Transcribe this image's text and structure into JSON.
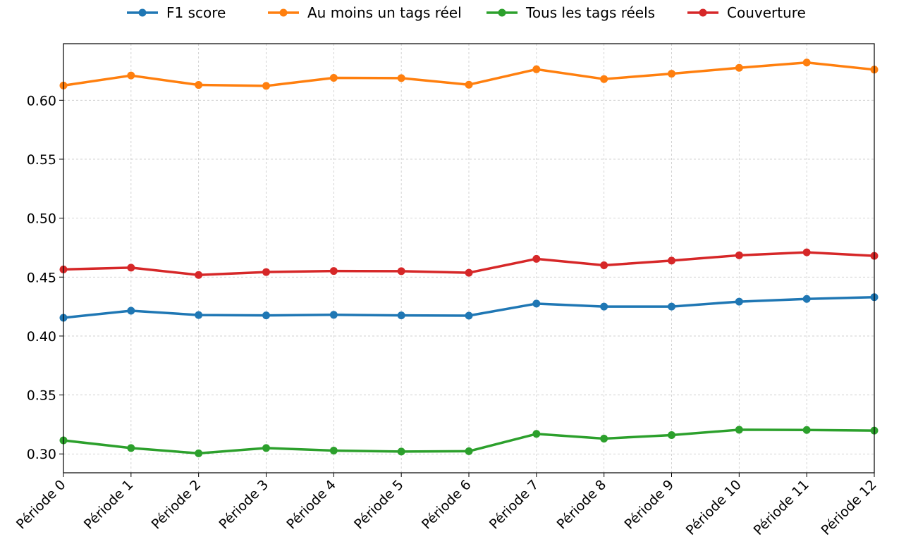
{
  "chart_data": {
    "type": "line",
    "title": "",
    "xlabel": "",
    "ylabel": "",
    "categories": [
      "Période 0",
      "Période 1",
      "Période 2",
      "Période 3",
      "Période 4",
      "Période 5",
      "Période 6",
      "Période 7",
      "Période 8",
      "Période 9",
      "Période 10",
      "Période 11",
      "Période 12"
    ],
    "ylim": [
      0.284,
      0.648
    ],
    "yticks": [
      0.3,
      0.35,
      0.4,
      0.45,
      0.5,
      0.55,
      0.6
    ],
    "ytick_labels": [
      "0.30",
      "0.35",
      "0.40",
      "0.45",
      "0.50",
      "0.55",
      "0.60"
    ],
    "grid": true,
    "legend_position": "top-center",
    "series": [
      {
        "name": "F1 score",
        "color": "#1f77b4",
        "values": [
          0.4155,
          0.4215,
          0.4178,
          0.4175,
          0.418,
          0.4175,
          0.4173,
          0.4275,
          0.425,
          0.425,
          0.4292,
          0.4315,
          0.433
        ]
      },
      {
        "name": "Au moins un tags réel",
        "color": "#ff7f0e",
        "values": [
          0.6125,
          0.621,
          0.613,
          0.6122,
          0.619,
          0.6188,
          0.6132,
          0.6263,
          0.618,
          0.6225,
          0.6275,
          0.632,
          0.626
        ]
      },
      {
        "name": "Tous les tags réels",
        "color": "#2ca02c",
        "values": [
          0.3115,
          0.305,
          0.3005,
          0.305,
          0.3028,
          0.302,
          0.3023,
          0.317,
          0.313,
          0.316,
          0.3205,
          0.3203,
          0.3198
        ]
      },
      {
        "name": "Couverture",
        "color": "#d62728",
        "values": [
          0.4565,
          0.458,
          0.4518,
          0.4543,
          0.4552,
          0.455,
          0.4537,
          0.4655,
          0.46,
          0.464,
          0.4685,
          0.471,
          0.468
        ]
      }
    ]
  }
}
